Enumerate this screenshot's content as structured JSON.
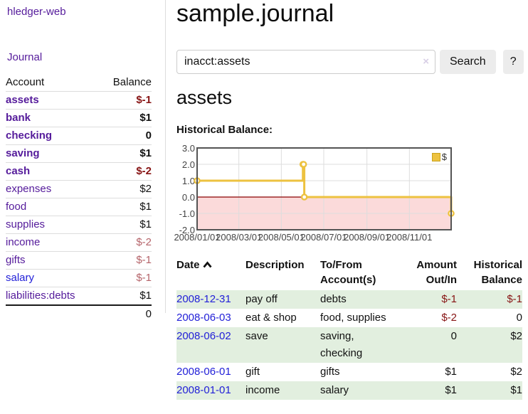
{
  "colors": {
    "link_purple": "#551b9b",
    "link_blue": "#2220d8",
    "neg_dark": "#871414",
    "neg_soft": "#b5646a",
    "stripe_green": "#e2efdf",
    "chart_line": "#EDC240",
    "chart_zero": "#8b0000",
    "chart_neg_fill": "#fbdada",
    "chart_border": "#545454",
    "chart_grid": "#dddddd"
  },
  "sidebar": {
    "brand": "hledger-web",
    "journal_link": "Journal",
    "accounts_header": {
      "account": "Account",
      "balance": "Balance"
    },
    "accounts": [
      {
        "name": "assets",
        "balance": "$-1",
        "level": 1,
        "bold": true,
        "name_style": "purple",
        "balance_style": "neg-strong"
      },
      {
        "name": "bank",
        "balance": "$1",
        "level": 2,
        "bold": true,
        "name_style": "purple",
        "balance_style": "plain"
      },
      {
        "name": "checking",
        "balance": "0",
        "level": 3,
        "bold": true,
        "name_style": "purple",
        "balance_style": "plain"
      },
      {
        "name": "saving",
        "balance": "$1",
        "level": 3,
        "bold": true,
        "name_style": "purple",
        "balance_style": "plain"
      },
      {
        "name": "cash",
        "balance": "$-2",
        "level": 2,
        "bold": true,
        "name_style": "purple",
        "balance_style": "neg-strong"
      },
      {
        "name": "expenses",
        "balance": "$2",
        "level": 1,
        "bold": false,
        "name_style": "purple",
        "balance_style": "plain"
      },
      {
        "name": "food",
        "balance": "$1",
        "level": 2,
        "bold": false,
        "name_style": "purple",
        "balance_style": "plain"
      },
      {
        "name": "supplies",
        "balance": "$1",
        "level": 2,
        "bold": false,
        "name_style": "purple",
        "balance_style": "plain"
      },
      {
        "name": "income",
        "balance": "$-2",
        "level": 1,
        "bold": false,
        "name_style": "purple",
        "balance_style": "neg-soft"
      },
      {
        "name": "gifts",
        "balance": "$-1",
        "level": 2,
        "bold": false,
        "name_style": "purple",
        "balance_style": "neg-soft"
      },
      {
        "name": "salary",
        "balance": "$-1",
        "level": 2,
        "bold": false,
        "name_style": "blue",
        "balance_style": "neg-soft"
      },
      {
        "name": "liabilities:debts",
        "balance": "$1",
        "level": 1,
        "bold": false,
        "name_style": "purple",
        "balance_style": "plain"
      }
    ],
    "total": "0"
  },
  "main": {
    "title": "sample.journal",
    "search": {
      "value": "inacct:assets",
      "clear_icon": "×",
      "button_label": "Search",
      "help_label": "?"
    },
    "account_heading": "assets",
    "chart_label": "Historical Balance:"
  },
  "chart_data": {
    "type": "line",
    "style": "step",
    "title": "Historical Balance:",
    "xlim": [
      "2008-01-01",
      "2008-12-31"
    ],
    "ylim": [
      -2,
      3
    ],
    "grid": true,
    "legend_position": "top-right",
    "negative_region_shaded": true,
    "zero_line": true,
    "series": [
      {
        "name": "$",
        "points": [
          [
            "2008-01-01",
            1
          ],
          [
            "2008-06-01",
            2
          ],
          [
            "2008-06-02",
            2
          ],
          [
            "2008-06-03",
            0
          ],
          [
            "2008-12-31",
            -1
          ]
        ]
      }
    ],
    "x_ticks": [
      {
        "date": "2008-01-01",
        "label": "2008/01/01"
      },
      {
        "date": "2008-03-01",
        "label": "2008/03/01"
      },
      {
        "date": "2008-05-01",
        "label": "2008/05/01"
      },
      {
        "date": "2008-07-01",
        "label": "2008/07/01"
      },
      {
        "date": "2008-09-01",
        "label": "2008/09/01"
      },
      {
        "date": "2008-11-01",
        "label": "2008/11/01"
      }
    ],
    "y_ticks": [
      {
        "value": 3,
        "label": "3.0"
      },
      {
        "value": 2,
        "label": "2.0"
      },
      {
        "value": 1,
        "label": "1.0"
      },
      {
        "value": 0,
        "label": "0.0"
      },
      {
        "value": -1,
        "label": "-1.0"
      },
      {
        "value": -2,
        "label": "-2.0"
      }
    ]
  },
  "register": {
    "columns": [
      {
        "lines": [
          "Date"
        ],
        "align": "left",
        "sorted": "asc"
      },
      {
        "lines": [
          "Description"
        ],
        "align": "left"
      },
      {
        "lines": [
          "To/From",
          "Account(s)"
        ],
        "align": "left"
      },
      {
        "lines": [
          "Amount",
          "Out/In"
        ],
        "align": "right"
      },
      {
        "lines": [
          "Historical",
          "Balance"
        ],
        "align": "right"
      }
    ],
    "rows": [
      {
        "date": "2008-12-31",
        "description": "pay off",
        "accounts": "debts",
        "amount": "$-1",
        "amount_neg": true,
        "balance": "$-1",
        "balance_neg": true
      },
      {
        "date": "2008-06-03",
        "description": "eat & shop",
        "accounts": "food, supplies",
        "amount": "$-2",
        "amount_neg": true,
        "balance": "0",
        "balance_neg": false
      },
      {
        "date": "2008-06-02",
        "description": "save",
        "accounts": "saving, checking",
        "amount": "0",
        "amount_neg": false,
        "balance": "$2",
        "balance_neg": false
      },
      {
        "date": "2008-06-01",
        "description": "gift",
        "accounts": "gifts",
        "amount": "$1",
        "amount_neg": false,
        "balance": "$2",
        "balance_neg": false
      },
      {
        "date": "2008-01-01",
        "description": "income",
        "accounts": "salary",
        "amount": "$1",
        "amount_neg": false,
        "balance": "$1",
        "balance_neg": false
      }
    ]
  }
}
